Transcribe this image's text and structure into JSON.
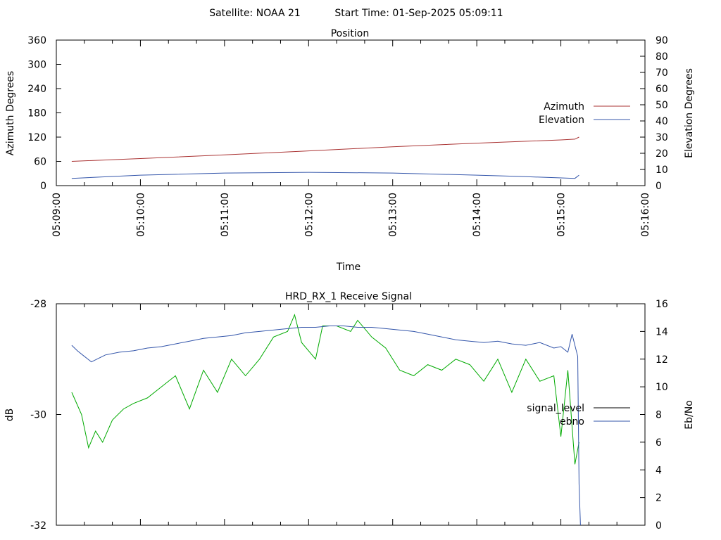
{
  "header": {
    "satellite": "Satellite: NOAA 21",
    "start_time": "Start Time: 01-Sep-2025 05:09:11"
  },
  "chart_data": [
    {
      "type": "line",
      "title": "Position",
      "xlabel": "Time",
      "ylabel": "Azimuth Degrees",
      "y2label": "Elevation Degrees",
      "xlim": [
        "05:09:00",
        "05:16:00"
      ],
      "x_ticks": [
        "05:09:00",
        "05:10:00",
        "05:11:00",
        "05:12:00",
        "05:13:00",
        "05:14:00",
        "05:15:00",
        "05:16:00"
      ],
      "ylim": [
        0,
        360
      ],
      "y_ticks": [
        "0",
        "60",
        "120",
        "180",
        "240",
        "300",
        "360"
      ],
      "y2lim": [
        0,
        90
      ],
      "y2_ticks": [
        "0",
        "10",
        "20",
        "30",
        "40",
        "50",
        "60",
        "70",
        "80",
        "90"
      ],
      "legend_position": "right",
      "grid": false,
      "series": [
        {
          "name": "Azimuth",
          "axis": "y",
          "color": "#aa3333",
          "x": [
            "05:09:11",
            "05:10:00",
            "05:11:00",
            "05:12:00",
            "05:13:00",
            "05:14:00",
            "05:15:00",
            "05:15:10",
            "05:15:13"
          ],
          "values": [
            60,
            67,
            76,
            86,
            96,
            105,
            113,
            115,
            120
          ]
        },
        {
          "name": "Elevation",
          "axis": "y2",
          "color": "#3355aa",
          "x": [
            "05:09:11",
            "05:10:00",
            "05:11:00",
            "05:12:00",
            "05:13:00",
            "05:14:00",
            "05:14:30",
            "05:15:00",
            "05:15:10",
            "05:15:13"
          ],
          "values": [
            4.5,
            6.5,
            7.8,
            8.2,
            7.8,
            6.5,
            5.7,
            4.8,
            4.5,
            6.5
          ]
        }
      ]
    },
    {
      "type": "line",
      "title": "HRD_RX_1 Receive Signal",
      "xlabel": "",
      "ylabel": "dB",
      "y2label": "Eb/No",
      "xlim": [
        "05:09:00",
        "05:16:00"
      ],
      "ylim": [
        -32,
        -28
      ],
      "y_ticks": [
        "-32",
        "-30",
        "-28"
      ],
      "y2lim": [
        0,
        16
      ],
      "y2_ticks": [
        "0",
        "2",
        "4",
        "6",
        "8",
        "10",
        "12",
        "14",
        "16"
      ],
      "legend_position": "right",
      "grid": false,
      "series": [
        {
          "name": "signal_level",
          "axis": "y",
          "color": "#00aa00",
          "legend_color": "#000000",
          "x": [
            "05:09:11",
            "05:09:18",
            "05:09:23",
            "05:09:28",
            "05:09:33",
            "05:09:40",
            "05:09:48",
            "05:09:55",
            "05:10:05",
            "05:10:15",
            "05:10:25",
            "05:10:35",
            "05:10:45",
            "05:10:55",
            "05:11:05",
            "05:11:15",
            "05:11:25",
            "05:11:35",
            "05:11:45",
            "05:11:50",
            "05:11:55",
            "05:12:05",
            "05:12:10",
            "05:12:20",
            "05:12:30",
            "05:12:35",
            "05:12:45",
            "05:12:55",
            "05:13:05",
            "05:13:15",
            "05:13:25",
            "05:13:35",
            "05:13:45",
            "05:13:55",
            "05:14:05",
            "05:14:15",
            "05:14:25",
            "05:14:35",
            "05:14:45",
            "05:14:55",
            "05:15:00",
            "05:15:05",
            "05:15:10",
            "05:15:13"
          ],
          "values": [
            -29.6,
            -30.0,
            -30.6,
            -30.3,
            -30.5,
            -30.1,
            -29.9,
            -29.8,
            -29.7,
            -29.5,
            -29.3,
            -29.9,
            -29.2,
            -29.6,
            -29.0,
            -29.3,
            -29.0,
            -28.6,
            -28.5,
            -28.2,
            -28.7,
            -29.0,
            -28.4,
            -28.4,
            -28.5,
            -28.3,
            -28.6,
            -28.8,
            -29.2,
            -29.3,
            -29.1,
            -29.2,
            -29.0,
            -29.1,
            -29.4,
            -29.0,
            -29.6,
            -29.0,
            -29.4,
            -29.3,
            -30.4,
            -29.2,
            -30.9,
            -30.5
          ]
        },
        {
          "name": "ebno",
          "axis": "y2",
          "color": "#3355aa",
          "x": [
            "05:09:11",
            "05:09:15",
            "05:09:20",
            "05:09:25",
            "05:09:35",
            "05:09:45",
            "05:09:55",
            "05:10:05",
            "05:10:15",
            "05:10:25",
            "05:10:35",
            "05:10:45",
            "05:10:55",
            "05:11:05",
            "05:11:15",
            "05:11:25",
            "05:11:35",
            "05:11:45",
            "05:11:55",
            "05:12:05",
            "05:12:15",
            "05:12:25",
            "05:12:35",
            "05:12:45",
            "05:12:55",
            "05:13:05",
            "05:13:15",
            "05:13:25",
            "05:13:35",
            "05:13:45",
            "05:13:55",
            "05:14:05",
            "05:14:15",
            "05:14:25",
            "05:14:35",
            "05:14:45",
            "05:14:55",
            "05:15:00",
            "05:15:05",
            "05:15:08",
            "05:15:10",
            "05:15:12",
            "05:15:13",
            "05:15:14"
          ],
          "values": [
            13.0,
            12.6,
            12.2,
            11.8,
            12.3,
            12.5,
            12.6,
            12.8,
            12.9,
            13.1,
            13.3,
            13.5,
            13.6,
            13.7,
            13.9,
            14.0,
            14.1,
            14.2,
            14.3,
            14.3,
            14.4,
            14.4,
            14.3,
            14.3,
            14.2,
            14.1,
            14.0,
            13.8,
            13.6,
            13.4,
            13.3,
            13.2,
            13.3,
            13.1,
            13.0,
            13.2,
            12.8,
            12.9,
            12.5,
            13.8,
            13.0,
            12.2,
            3.0,
            0
          ]
        }
      ]
    }
  ]
}
